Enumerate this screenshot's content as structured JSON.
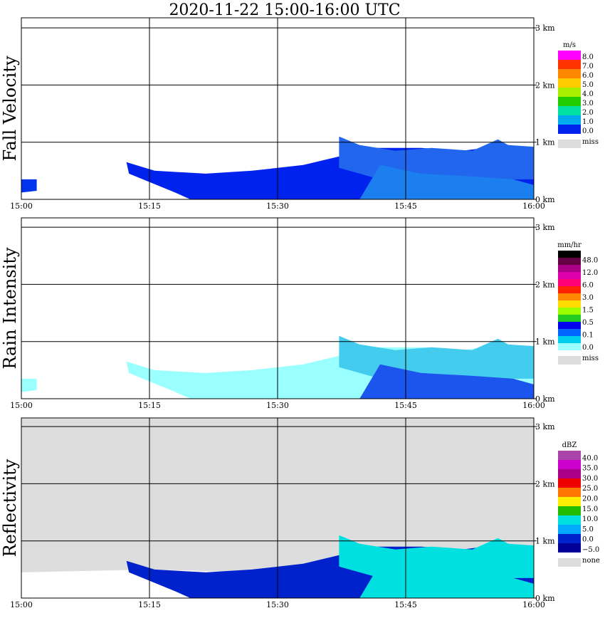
{
  "title": "2020-11-22   15:00-16:00 UTC",
  "chart_data": [
    {
      "type": "heatmap",
      "panel_title": "Fall Velocity",
      "x_ticks": [
        "15:00",
        "15:15",
        "15:30",
        "15:45",
        "16:00"
      ],
      "y_ticks": [
        "0 km",
        "1 km",
        "2 km",
        "3 km"
      ],
      "ylim_km": [
        0,
        3
      ],
      "legend_unit": "m/s",
      "legend_levels": [
        "8.0",
        "7.0",
        "6.0",
        "5.0",
        "4.0",
        "3.0",
        "2.0",
        "1.0",
        "0.0"
      ],
      "legend_colors": [
        "#ff00ff",
        "#ff3300",
        "#ff8800",
        "#ffcc00",
        "#aaee00",
        "#22cc00",
        "#00e0a0",
        "#00aaee",
        "#0022ee"
      ],
      "missing_label": "miss",
      "missing_color": "#dddddd",
      "background": "#ffffff"
    },
    {
      "type": "heatmap",
      "panel_title": "Rain Intensity",
      "x_ticks": [
        "15:00",
        "15:15",
        "15:30",
        "15:45",
        "16:00"
      ],
      "y_ticks": [
        "0 km",
        "1 km",
        "2 km",
        "3 km"
      ],
      "ylim_km": [
        0,
        3
      ],
      "legend_unit": "mm/hr",
      "legend_levels": [
        "48.0",
        "12.0",
        "6.0",
        "3.0",
        "1.5",
        "0.5",
        "0.1",
        "0.0"
      ],
      "legend_colors": [
        "#000000",
        "#660044",
        "#aa0088",
        "#dd00aa",
        "#ff0077",
        "#ff2200",
        "#ff8800",
        "#ffdd00",
        "#99ff00",
        "#22cc22",
        "#0000ee",
        "#0066ff",
        "#00ccee",
        "#99ffff"
      ],
      "missing_label": "miss",
      "missing_color": "#dddddd",
      "background": "#ffffff"
    },
    {
      "type": "heatmap",
      "panel_title": "Reflectivity",
      "x_ticks": [
        "15:00",
        "15:15",
        "15:30",
        "15:45",
        "16:00"
      ],
      "y_ticks": [
        "0 km",
        "1 km",
        "2 km",
        "3 km"
      ],
      "ylim_km": [
        0,
        3
      ],
      "legend_unit": "dBZ",
      "legend_levels": [
        "40.0",
        "35.0",
        "30.0",
        "25.0",
        "20.0",
        "15.0",
        "10.0",
        "5.0",
        "0.0",
        "−5.0"
      ],
      "legend_colors": [
        "#aa44aa",
        "#cc00cc",
        "#aa0088",
        "#ee0000",
        "#ff7700",
        "#ffee00",
        "#22bb00",
        "#00e0e0",
        "#00aaff",
        "#0022cc",
        "#000099"
      ],
      "missing_label": "none",
      "missing_color": "#dddddd",
      "background": "#dddddd"
    }
  ]
}
